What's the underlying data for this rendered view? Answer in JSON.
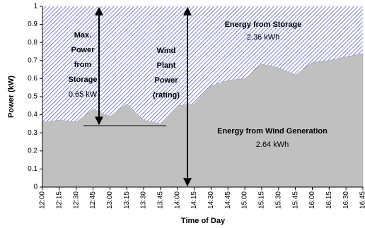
{
  "chart_data": {
    "type": "area",
    "y_label": "Power (kW)",
    "x_label": "Time of Day",
    "categories": [
      "12:00",
      "12:15",
      "12:30",
      "12:45",
      "13:00",
      "13:15",
      "13:30",
      "13:45",
      "14:00",
      "14:15",
      "14:30",
      "14:45",
      "15:00",
      "15:15",
      "15:30",
      "15:45",
      "16:00",
      "16:15",
      "16:30",
      "16:45"
    ],
    "series": [
      {
        "color": "#c0c0c0",
        "values": [
          0.36,
          0.37,
          0.36,
          0.43,
          0.39,
          0.46,
          0.37,
          0.35,
          0.45,
          0.46,
          0.56,
          0.59,
          0.6,
          0.68,
          0.66,
          0.62,
          0.69,
          0.7,
          0.72,
          0.74
        ]
      }
    ],
    "hatch_color": "#4a4ac8",
    "ylim": [
      0,
      1
    ],
    "yticks": [
      0,
      0.1,
      0.2,
      0.3,
      0.4,
      0.5,
      0.6,
      0.7,
      0.8,
      0.9,
      1
    ],
    "annotations": [
      {
        "lines": [
          "Max.",
          "Power",
          "from",
          "Storage"
        ],
        "note": "0.65 kW"
      },
      {
        "lines": [
          "Wind",
          "Plant",
          "Power",
          "(rating)"
        ]
      },
      {
        "lines": [
          "Energy from Storage"
        ],
        "note": "2.36 kWh"
      },
      {
        "lines": [
          "Energy from Wind Generation"
        ],
        "note": "2.64 kWh"
      }
    ]
  }
}
